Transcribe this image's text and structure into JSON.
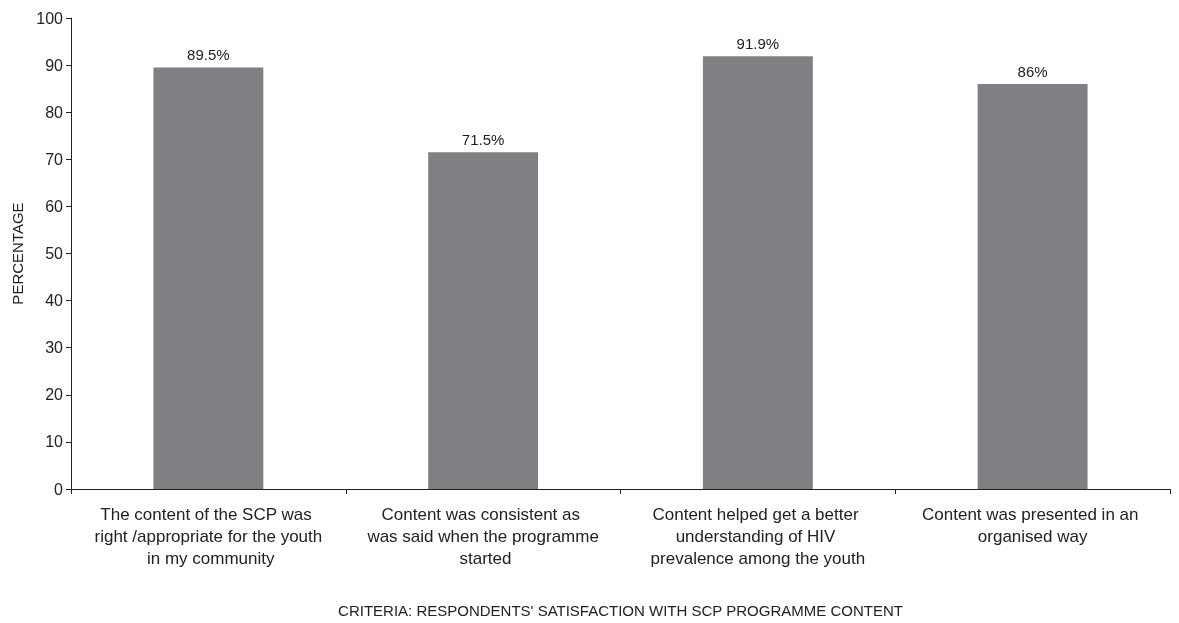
{
  "chart_data": {
    "type": "bar",
    "xlabel": "CRITERIA: RESPONDENTS' SATISFACTION WITH SCP PROGRAMME CONTENT",
    "ylabel": "PERCENTAGE",
    "categories": [
      "The content of the SCP was right /appropriate for the youth in my community",
      "Content was consistent as was said when the programme started",
      "Content helped get a better understanding of HIV prevalence among the youth",
      "Content was presented in an organised way"
    ],
    "values": [
      89.5,
      71.5,
      91.9,
      86
    ],
    "value_labels": [
      "89.5%",
      "71.5%",
      "91.9%",
      "86%"
    ],
    "color": "#808084",
    "ylim": [
      0,
      100
    ],
    "yticks": [
      0,
      10,
      20,
      30,
      40,
      50,
      60,
      70,
      80,
      90,
      100
    ],
    "grid": false
  }
}
